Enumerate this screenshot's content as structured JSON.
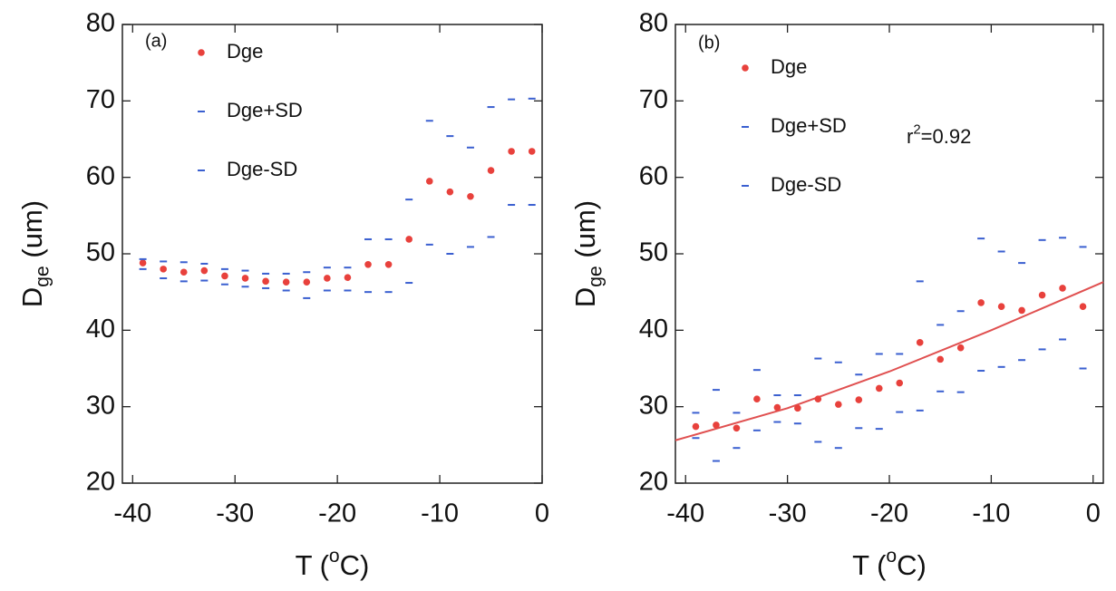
{
  "chart_data": [
    {
      "type": "scatter",
      "panel_label": "(a)",
      "xlabel": [
        "T (",
        "o",
        "C)"
      ],
      "ylabel": [
        "D",
        "ge",
        " (um)"
      ],
      "xlim": [
        -41,
        0
      ],
      "ylim": [
        20,
        80
      ],
      "xticks": [
        -40,
        -30,
        -20,
        -10,
        0
      ],
      "yticks": [
        20,
        30,
        40,
        50,
        60,
        70,
        80
      ],
      "legend": "upper left",
      "x": [
        -39,
        -37,
        -35,
        -33,
        -31,
        -29,
        -27,
        -25,
        -23,
        -21,
        -19,
        -17,
        -15,
        -13,
        -11,
        -9,
        -7,
        -5,
        -3,
        -1
      ],
      "series": [
        {
          "name": "Dge",
          "color": "#e8413c",
          "marker": "circle",
          "values": [
            48.8,
            48.0,
            47.6,
            47.8,
            47.1,
            46.8,
            46.4,
            46.3,
            46.3,
            46.8,
            46.9,
            48.6,
            48.6,
            51.9,
            59.5,
            58.1,
            57.5,
            60.9,
            63.4,
            63.4
          ]
        },
        {
          "name": "Dge+SD",
          "color": "#3a5fd0",
          "marker": "dash",
          "values": [
            49.3,
            49.0,
            48.9,
            48.7,
            48.0,
            47.8,
            47.4,
            47.4,
            47.6,
            48.2,
            48.2,
            51.9,
            51.9,
            57.1,
            67.4,
            65.4,
            63.9,
            69.2,
            70.2,
            70.3
          ]
        },
        {
          "name": "Dge-SD",
          "color": "#3a5fd0",
          "marker": "dash",
          "values": [
            48.0,
            46.8,
            46.4,
            46.5,
            46.0,
            45.7,
            45.5,
            45.2,
            44.2,
            45.2,
            45.2,
            45.0,
            45.0,
            46.2,
            51.2,
            50.0,
            50.9,
            52.2,
            56.4,
            56.4
          ]
        }
      ]
    },
    {
      "type": "scatter",
      "panel_label": "(b)",
      "xlabel": [
        "T (",
        "o",
        "C)"
      ],
      "ylabel": [
        "D",
        "ge",
        " (um)"
      ],
      "xlim": [
        -41,
        1
      ],
      "ylim": [
        20,
        80
      ],
      "xticks": [
        -40,
        -30,
        -20,
        -10,
        0
      ],
      "yticks": [
        20,
        30,
        40,
        50,
        60,
        70,
        80
      ],
      "legend": "upper left",
      "annotation": [
        "r",
        "2",
        "=0.92"
      ],
      "x": [
        -39,
        -37,
        -35,
        -33,
        -31,
        -29,
        -27,
        -25,
        -23,
        -21,
        -19,
        -17,
        -15,
        -13,
        -11,
        -9,
        -7,
        -5,
        -3,
        -1
      ],
      "series": [
        {
          "name": "Dge",
          "color": "#e8413c",
          "marker": "circle",
          "values": [
            27.4,
            27.6,
            27.2,
            31.0,
            29.9,
            29.8,
            31.0,
            30.3,
            30.9,
            32.4,
            33.1,
            38.4,
            36.2,
            37.7,
            43.6,
            43.1,
            42.6,
            44.6,
            45.5,
            43.1
          ]
        },
        {
          "name": "Dge+SD",
          "color": "#3a5fd0",
          "marker": "dash",
          "values": [
            29.2,
            32.2,
            29.2,
            34.8,
            31.5,
            31.5,
            36.3,
            35.8,
            34.2,
            36.9,
            36.9,
            46.4,
            40.7,
            42.5,
            52.0,
            50.3,
            48.8,
            51.8,
            52.1,
            50.9
          ]
        },
        {
          "name": "Dge-SD",
          "color": "#3a5fd0",
          "marker": "dash",
          "values": [
            25.9,
            22.9,
            24.6,
            26.9,
            28.0,
            27.8,
            25.4,
            24.6,
            27.2,
            27.1,
            29.3,
            29.5,
            32.0,
            31.9,
            34.7,
            35.2,
            36.1,
            37.5,
            38.8,
            35.0
          ]
        }
      ],
      "fit": {
        "color": "#e05050",
        "x": [
          -41,
          -30,
          -20,
          -10,
          1
        ],
        "values": [
          25.6,
          29.8,
          34.6,
          40.0,
          46.3
        ]
      }
    }
  ]
}
